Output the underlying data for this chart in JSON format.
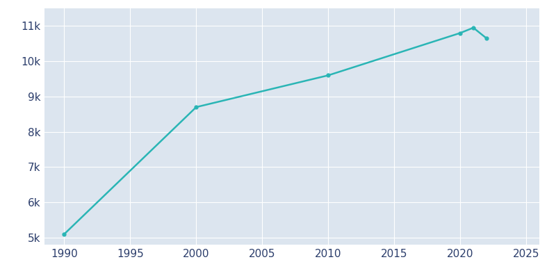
{
  "years": [
    1990,
    2000,
    2010,
    2020,
    2021,
    2022
  ],
  "population": [
    5100,
    8700,
    9600,
    10800,
    10950,
    10650
  ],
  "line_color": "#2AB5B5",
  "marker": "o",
  "marker_size": 3.5,
  "line_width": 1.8,
  "fig_bg_color": "#FFFFFF",
  "plot_bg_color": "#DCE5EF",
  "grid_color": "#FFFFFF",
  "tick_color": "#2B3D6B",
  "xlim": [
    1988.5,
    2026
  ],
  "ylim": [
    4800,
    11500
  ],
  "xticks": [
    1990,
    1995,
    2000,
    2005,
    2010,
    2015,
    2020,
    2025
  ],
  "ytick_values": [
    5000,
    6000,
    7000,
    8000,
    9000,
    10000,
    11000
  ],
  "ytick_labels": [
    "5k",
    "6k",
    "7k",
    "8k",
    "9k",
    "10k",
    "11k"
  ],
  "tick_fontsize": 11
}
